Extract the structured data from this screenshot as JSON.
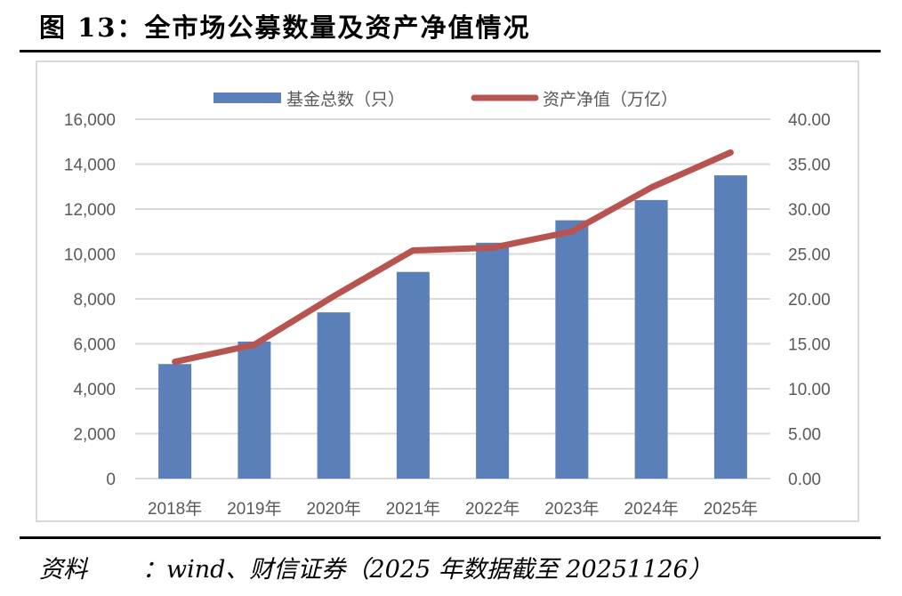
{
  "title": "图 13：全市场公募数量及资产净值情况",
  "source": {
    "label": "资料",
    "text": "：wind、财信证券（2025 年数据截至 20251126）"
  },
  "colors": {
    "bar": "#5b7fb8",
    "line": "#b85450",
    "grid": "#d9d9d9",
    "text": "#595959"
  },
  "chart_data": {
    "type": "bar+line",
    "title": "",
    "categories": [
      "2018年",
      "2019年",
      "2020年",
      "2021年",
      "2022年",
      "2023年",
      "2024年",
      "2025年"
    ],
    "series": [
      {
        "name": "基金总数（只）",
        "type": "bar",
        "axis": "left",
        "values": [
          5100,
          6100,
          7400,
          9200,
          10500,
          11500,
          12400,
          13500
        ]
      },
      {
        "name": "资产净值（万亿）",
        "type": "line",
        "axis": "right",
        "values": [
          13.0,
          14.9,
          20.3,
          25.4,
          25.7,
          27.5,
          32.4,
          36.3
        ]
      }
    ],
    "left_axis": {
      "ylim": [
        0,
        16000
      ],
      "ticks": [
        "0",
        "2,000",
        "4,000",
        "6,000",
        "8,000",
        "10,000",
        "12,000",
        "14,000",
        "16,000"
      ]
    },
    "right_axis": {
      "ylim": [
        0,
        40
      ],
      "ticks": [
        "0.00",
        "5.00",
        "10.00",
        "15.00",
        "20.00",
        "25.00",
        "30.00",
        "35.00",
        "40.00"
      ]
    },
    "grid": true,
    "legend_position": "top-center"
  }
}
